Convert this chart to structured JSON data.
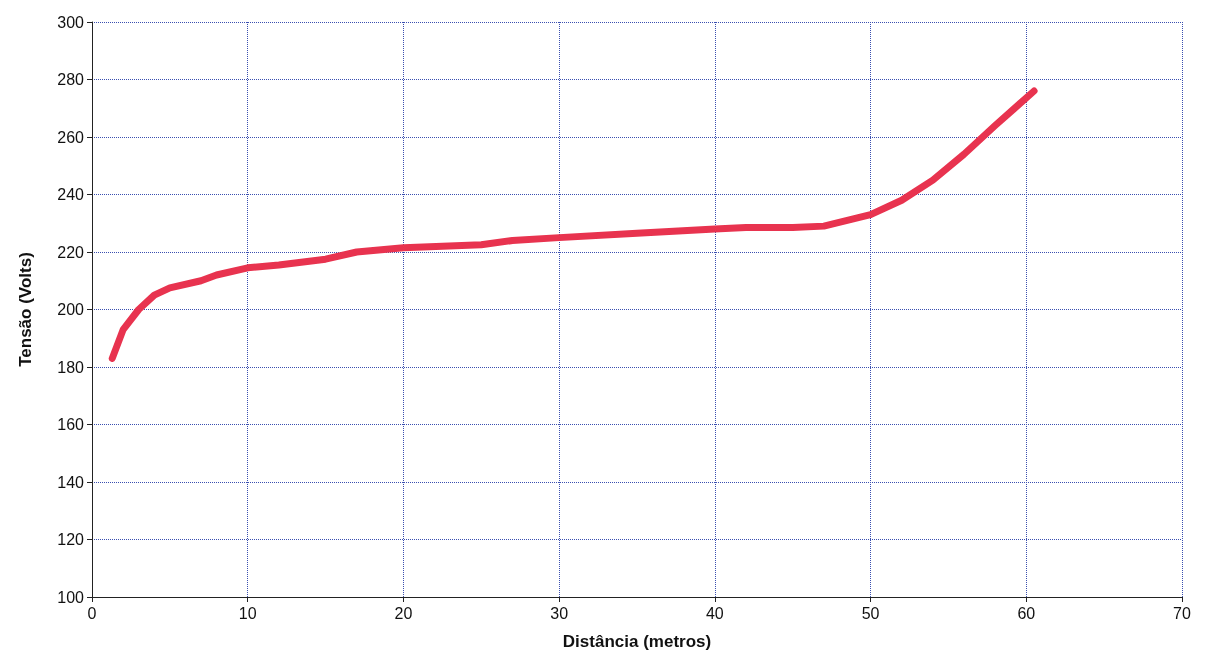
{
  "chart_data": {
    "type": "line",
    "xlabel": "Distância (metros)",
    "ylabel": "Tensão (Volts)",
    "x": [
      1.3,
      2,
      3,
      4,
      5,
      7,
      8,
      10,
      12,
      15,
      17,
      20,
      25,
      27,
      30,
      35,
      40,
      42,
      45,
      47,
      50,
      52,
      54,
      56,
      58,
      60.5
    ],
    "series": [
      {
        "color": "#e8334f",
        "values": [
          183,
          193,
          200,
          205,
          207.5,
          210,
          212,
          214.5,
          215.5,
          217.5,
          220,
          221.5,
          222.5,
          224,
          225,
          226.5,
          228,
          228.5,
          228.5,
          229,
          233,
          238,
          245,
          254,
          264,
          276
        ]
      }
    ],
    "xlim": [
      0,
      70
    ],
    "xticks": [
      0,
      10,
      20,
      30,
      40,
      50,
      60,
      70
    ],
    "ylim": [
      100,
      300
    ],
    "yticks": [
      100,
      120,
      140,
      160,
      180,
      200,
      220,
      240,
      260,
      280,
      300
    ],
    "grid": true,
    "marker": "none",
    "line_style": "solid"
  }
}
